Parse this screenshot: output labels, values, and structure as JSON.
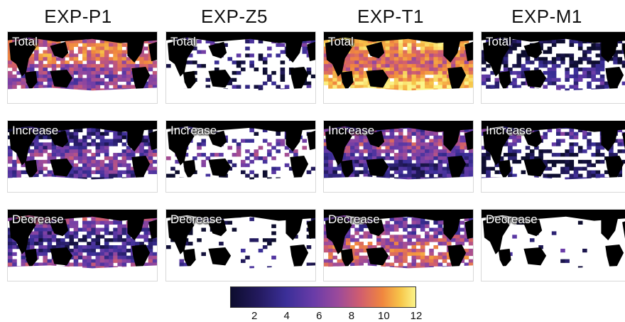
{
  "columns": [
    "EXP-P1",
    "EXP-Z5",
    "EXP-T1",
    "EXP-M1"
  ],
  "rows": [
    "Total",
    "Increase",
    "Decrease"
  ],
  "chart_data": {
    "type": "heatmap",
    "colormap": "plasma-like (dark navy → purple → orange → yellow)",
    "colorbar": {
      "ticks": [
        "2",
        "4",
        "6",
        "8",
        "10",
        "12"
      ],
      "range": [
        0.5,
        12
      ]
    },
    "panels": [
      {
        "experiment": "EXP-P1",
        "metric": "Total",
        "intensity": 0.55,
        "coverage": 0.85
      },
      {
        "experiment": "EXP-Z5",
        "metric": "Total",
        "intensity": 0.15,
        "coverage": 0.25
      },
      {
        "experiment": "EXP-T1",
        "metric": "Total",
        "intensity": 0.8,
        "coverage": 0.95
      },
      {
        "experiment": "EXP-M1",
        "metric": "Total",
        "intensity": 0.15,
        "coverage": 0.55
      },
      {
        "experiment": "EXP-P1",
        "metric": "Increase",
        "intensity": 0.3,
        "coverage": 0.75
      },
      {
        "experiment": "EXP-Z5",
        "metric": "Increase",
        "intensity": 0.25,
        "coverage": 0.25
      },
      {
        "experiment": "EXP-T1",
        "metric": "Increase",
        "intensity": 0.35,
        "coverage": 0.9
      },
      {
        "experiment": "EXP-M1",
        "metric": "Increase",
        "intensity": 0.15,
        "coverage": 0.5
      },
      {
        "experiment": "EXP-P1",
        "metric": "Decrease",
        "intensity": 0.35,
        "coverage": 0.8
      },
      {
        "experiment": "EXP-Z5",
        "metric": "Decrease",
        "intensity": 0.1,
        "coverage": 0.1
      },
      {
        "experiment": "EXP-T1",
        "metric": "Decrease",
        "intensity": 0.5,
        "coverage": 0.7
      },
      {
        "experiment": "EXP-M1",
        "metric": "Decrease",
        "intensity": 0.1,
        "coverage": 0.05
      }
    ]
  }
}
